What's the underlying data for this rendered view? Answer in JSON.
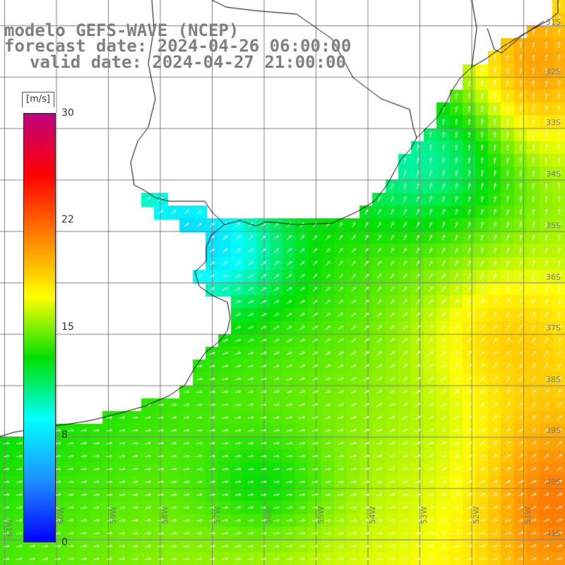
{
  "title": {
    "line1": "modelo GEFS-WAVE (NCEP)",
    "line2": "forecast date: 2024-04-26 06:00:00",
    "line3": "valid date: 2024-04-27 21:00:00"
  },
  "colorbar": {
    "units": "[m/s]",
    "min": 0,
    "max": 30,
    "ticks": [
      "30",
      "22",
      "15",
      "8",
      "0"
    ],
    "colors": [
      "#0000ff",
      "#1e90ff",
      "#00ffff",
      "#00e000",
      "#ffff00",
      "#ff8000",
      "#ff0000",
      "#c0007f"
    ]
  },
  "axes": {
    "lat_labels": [
      "31S",
      "32S",
      "33S",
      "34S",
      "35S",
      "36S",
      "37S",
      "38S",
      "39S",
      "40S",
      "41S"
    ],
    "lon_labels": [
      "61W",
      "60W",
      "59W",
      "58W",
      "57W",
      "56W",
      "55W",
      "54W",
      "53W",
      "52W",
      "51W"
    ]
  },
  "map": {
    "region": "Río de la Plata / Uruguay / southern Brazil coast",
    "variable": "wind speed (m/s) with direction arrows",
    "land_color": "#ffffff",
    "coastline_color": "#000000",
    "grid_color": "#808080",
    "arrow_color": "#ffffff"
  }
}
